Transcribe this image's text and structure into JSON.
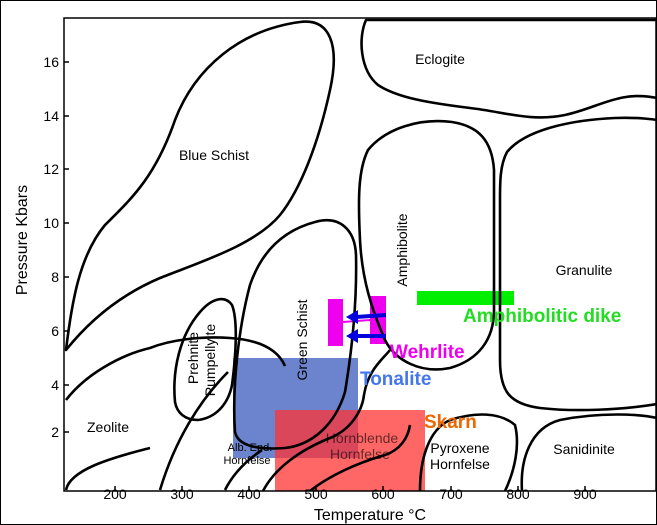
{
  "chart_data": {
    "type": "diagram",
    "title": "",
    "xlabel": "Temperature °C",
    "ylabel": "Pressure Kbars",
    "x_ticks": [
      "200",
      "300",
      "400",
      "500",
      "600",
      "700",
      "800",
      "900"
    ],
    "y_ticks": [
      "2",
      "4",
      "6",
      "8",
      "10",
      "12",
      "14",
      "16"
    ],
    "xlim": [
      130,
      1000
    ],
    "ylim": [
      0.3,
      17.5
    ],
    "facies_labels": {
      "eclogite": "Eclogite",
      "blue_schist": "Blue Schist",
      "amphibolite": "Amphibolite",
      "granulite": "Granulite",
      "green_schist": "Green Schist",
      "prehnite_1": "Prehnite",
      "prehnite_2": "Pumpellyite",
      "zeolite": "Zeolite",
      "alb_epd_1": "Alb.  Epd.",
      "alb_epd_2": "Hornfelse",
      "hornblende_1": "Hornblende",
      "hornblende_2": "Hornfelse",
      "pyroxene_1": "Pyroxene",
      "pyroxene_2": "Hornfelse",
      "sanidinite": "Sanidinite"
    },
    "rock_units": [
      {
        "name": "Amphibolitic dike",
        "color": "#00ee00",
        "t_range": [
          655,
          790
        ],
        "p_range": [
          7.0,
          7.5
        ]
      },
      {
        "name": "Wehrlite",
        "color": "#ee00ee",
        "t_range": [
          510,
          595
        ],
        "p_range": [
          5.4,
          7.2
        ]
      },
      {
        "name": "Tonalite",
        "color": "#3355bb",
        "t_range": [
          375,
          560
        ],
        "p_range": [
          1.0,
          4.9
        ]
      },
      {
        "name": "Skarn",
        "color": "#ff3333",
        "t_range": [
          440,
          650
        ],
        "p_range": [
          0.3,
          3.0
        ]
      }
    ],
    "label_colors": {
      "amphibolitic_dike": "#22dd22",
      "wehrlite": "#ee00ee",
      "tonalite": "#4477ee",
      "skarn": "#ee6600"
    },
    "arrow_color": "#0000dd"
  }
}
